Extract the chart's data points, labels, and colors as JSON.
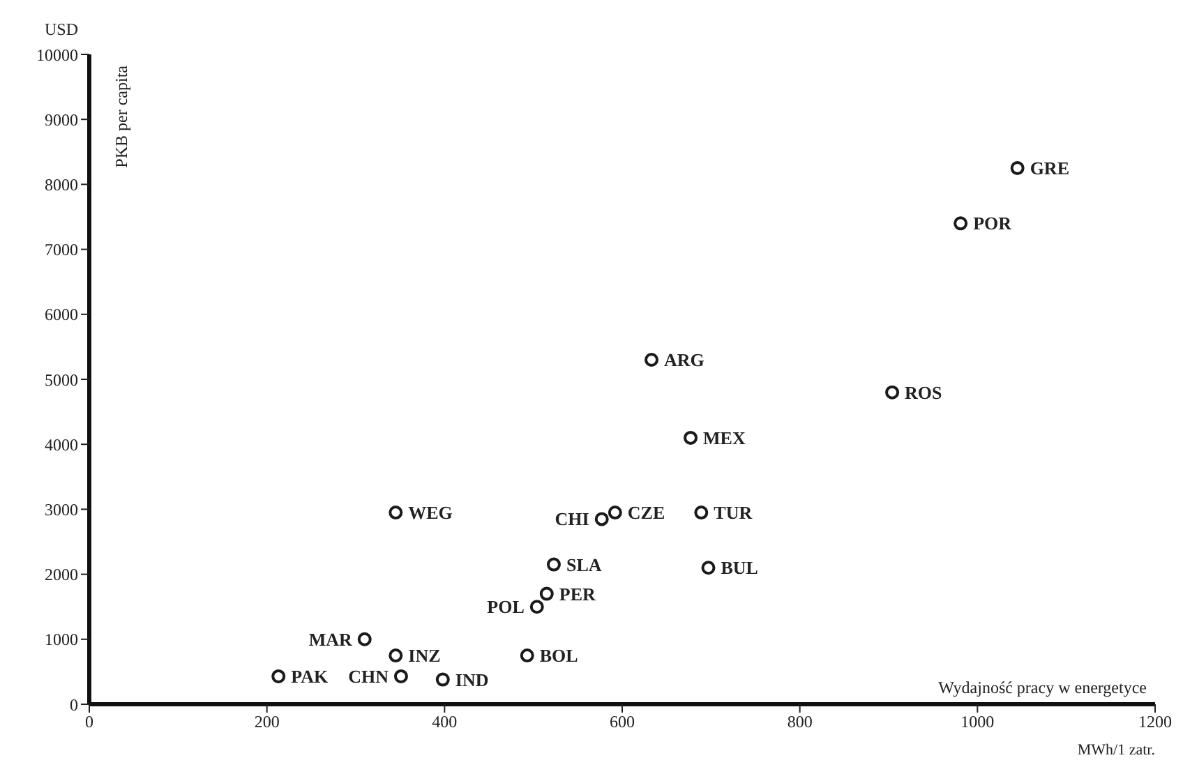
{
  "chart_data": {
    "type": "scatter",
    "ylabel": "PKB per capita",
    "xlabel": "Wydajność pracy w energetyce",
    "xlim": [
      0,
      1200
    ],
    "xticks": [
      0,
      200,
      400,
      600,
      800,
      1000,
      1200
    ],
    "ylim": [
      0,
      10000
    ],
    "yticks": [
      0,
      1000,
      2000,
      3000,
      4000,
      5000,
      6000,
      7000,
      8000,
      9000,
      10000
    ],
    "grid": false,
    "legend": false,
    "marker": "circle",
    "series": [
      {
        "color": "#1a1a1a",
        "x": [
          1045,
          981,
          904,
          633,
          677,
          345,
          577,
          592,
          689,
          523,
          697,
          515,
          504,
          310,
          345,
          493,
          213,
          351,
          398
        ],
        "values": [
          8250,
          7400,
          4800,
          5300,
          4100,
          2950,
          2850,
          2950,
          2950,
          2150,
          2100,
          1700,
          1500,
          1000,
          750,
          750,
          430,
          430,
          380
        ]
      }
    ],
    "annotations": [
      "USD",
      "MWh/1 zatr.",
      {
        "text": "GRE",
        "x": 1045,
        "y": 8250
      },
      {
        "text": "POR",
        "x": 981,
        "y": 7400
      },
      {
        "text": "ROS",
        "x": 904,
        "y": 4800
      },
      {
        "text": "ARG",
        "x": 633,
        "y": 5300
      },
      {
        "text": "MEX",
        "x": 677,
        "y": 4100
      },
      {
        "text": "WEG",
        "x": 345,
        "y": 2950
      },
      {
        "text": "CHI",
        "x": 577,
        "y": 2850
      },
      {
        "text": "CZE",
        "x": 592,
        "y": 2950
      },
      {
        "text": "TUR",
        "x": 689,
        "y": 2950
      },
      {
        "text": "SLA",
        "x": 523,
        "y": 2150
      },
      {
        "text": "BUL",
        "x": 697,
        "y": 2100
      },
      {
        "text": "PER",
        "x": 515,
        "y": 1700
      },
      {
        "text": "POL",
        "x": 504,
        "y": 1500
      },
      {
        "text": "MAR",
        "x": 310,
        "y": 1000
      },
      {
        "text": "INZ",
        "x": 345,
        "y": 750
      },
      {
        "text": "BOL",
        "x": 493,
        "y": 750
      },
      {
        "text": "PAK",
        "x": 213,
        "y": 430
      },
      {
        "text": "CHN",
        "x": 351,
        "y": 430
      },
      {
        "text": "IND",
        "x": 398,
        "y": 380
      }
    ]
  }
}
